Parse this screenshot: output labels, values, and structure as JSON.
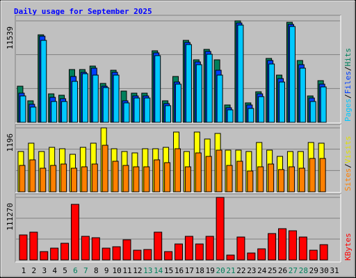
{
  "chart_data": [
    {
      "type": "bar",
      "title": "Daily usage for September 2025",
      "legend_separator": "/",
      "ylim": [
        0,
        11539
      ],
      "yticks": [
        11539
      ],
      "series": [
        {
          "name": "Hits",
          "color": "#00805c",
          "values": [
            4108,
            2449,
            9954,
            3239,
            3081,
            6004,
            6004,
            6399,
            4424,
            5925,
            3555,
            3318,
            3318,
            8137,
            2449,
            5214,
            9322,
            7110,
            8295,
            7110,
            1975,
            11539,
            2212,
            3476,
            7268,
            5372,
            11376,
            7031,
            3002,
            4740,
            null
          ]
        },
        {
          "name": "Files",
          "color": "#0040ff",
          "values": [
            3318,
            2054,
            9796,
            2844,
            2686,
            5214,
            5688,
            6162,
            4108,
            5688,
            2449,
            3002,
            3002,
            7900,
            2133,
            4582,
            9085,
            6873,
            8058,
            5925,
            1659,
            11297,
            1975,
            3239,
            7031,
            4977,
            11139,
            6557,
            2765,
            4345,
            null
          ]
        },
        {
          "name": "Pages",
          "color": "#00c8ff",
          "values": [
            3002,
            1738,
            9322,
            2370,
            2370,
            4661,
            5530,
            5372,
            3950,
            5372,
            2212,
            2765,
            2765,
            7584,
            1896,
            4345,
            8848,
            6557,
            7742,
            5372,
            1422,
            11060,
            1580,
            2923,
            6636,
            4582,
            10902,
            6162,
            2370,
            4029,
            null
          ]
        }
      ]
    },
    {
      "type": "bar",
      "ylim": [
        0,
        1196
      ],
      "yticks": [
        1196
      ],
      "series": [
        {
          "name": "Visits",
          "color": "#ffff00",
          "values": [
            754,
            910,
            754,
            832,
            806,
            702,
            832,
            910,
            1196,
            806,
            754,
            728,
            806,
            806,
            832,
            1118,
            754,
            1118,
            988,
            1092,
            780,
            780,
            754,
            923,
            780,
            663,
            754,
            754,
            923,
            910,
            null
          ]
        },
        {
          "name": "Sites",
          "color": "#ff8000",
          "values": [
            494,
            598,
            442,
            494,
            520,
            442,
            468,
            520,
            871,
            572,
            494,
            468,
            468,
            598,
            546,
            806,
            468,
            728,
            663,
            780,
            494,
            572,
            390,
            468,
            520,
            416,
            468,
            442,
            624,
            624,
            null
          ]
        }
      ]
    },
    {
      "type": "bar",
      "ylim": [
        0,
        111270
      ],
      "yticks": [
        111270
      ],
      "categories": [
        "1",
        "2",
        "3",
        "4",
        "5",
        "6",
        "7",
        "8",
        "9",
        "10",
        "11",
        "12",
        "13",
        "14",
        "15",
        "16",
        "17",
        "18",
        "19",
        "20",
        "21",
        "22",
        "23",
        "24",
        "25",
        "26",
        "27",
        "28",
        "29",
        "30",
        "31"
      ],
      "weekend": [
        "6",
        "7",
        "13",
        "14",
        "20",
        "21",
        "27",
        "28"
      ],
      "weekend_color": "#00805c",
      "series": [
        {
          "name": "KBytes",
          "color": "#ff0000",
          "values": [
            44496,
            49440,
            14832,
            21012,
            29664,
            98880,
            42024,
            39552,
            21012,
            23484,
            35844,
            17304,
            18540,
            49440,
            14832,
            28428,
            42024,
            28428,
            42024,
            111270,
            8652,
            40788,
            12360,
            19776,
            46968,
            55620,
            51912,
            40788,
            17304,
            27192,
            null
          ]
        }
      ]
    }
  ]
}
